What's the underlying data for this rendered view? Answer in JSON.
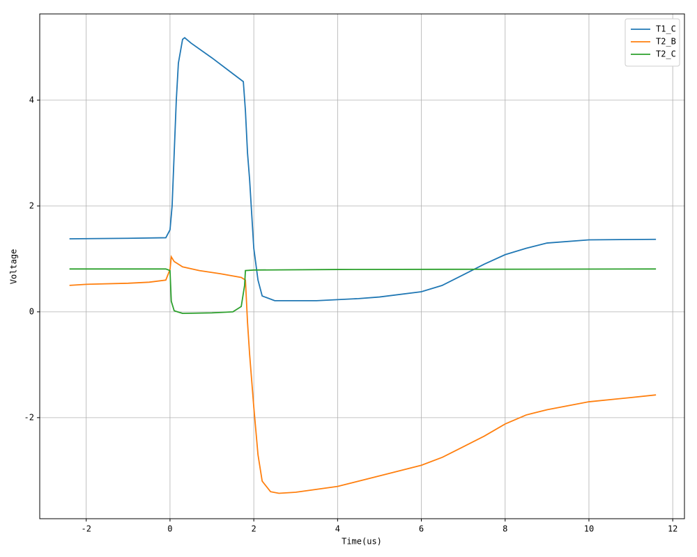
{
  "chart_data": {
    "type": "line",
    "xlabel": "Time(us)",
    "ylabel": "Voltage",
    "xlim": [
      -3.11,
      12.28
    ],
    "ylim": [
      -3.91,
      5.63
    ],
    "xticks": [
      -2,
      0,
      2,
      4,
      6,
      8,
      10,
      12
    ],
    "yticks": [
      -2,
      0,
      2,
      4
    ],
    "grid": true,
    "legend": "upper right",
    "series": [
      {
        "name": "T1_C",
        "color": "#1f77b4",
        "x": [
          -2.4,
          -1,
          -0.1,
          0,
          0.05,
          0.1,
          0.15,
          0.2,
          0.3,
          0.35,
          0.5,
          1.0,
          1.5,
          1.75,
          1.8,
          1.85,
          1.9,
          2.0,
          2.1,
          2.2,
          2.5,
          3.5,
          4.5,
          5,
          6,
          6.5,
          7,
          7.5,
          8,
          8.5,
          9,
          10,
          11.6
        ],
        "values": [
          1.38,
          1.39,
          1.4,
          1.55,
          2.0,
          3.0,
          4.0,
          4.7,
          5.15,
          5.18,
          5.08,
          4.8,
          4.5,
          4.35,
          3.8,
          3.0,
          2.5,
          1.2,
          0.6,
          0.3,
          0.21,
          0.21,
          0.25,
          0.28,
          0.38,
          0.5,
          0.7,
          0.9,
          1.08,
          1.2,
          1.3,
          1.36,
          1.37
        ]
      },
      {
        "name": "T2_B",
        "color": "#ff7f0e",
        "x": [
          -2.4,
          -2,
          -1,
          -0.5,
          -0.1,
          0,
          0.03,
          0.1,
          0.3,
          0.7,
          1.2,
          1.7,
          1.8,
          1.85,
          1.9,
          2.0,
          2.1,
          2.2,
          2.4,
          2.6,
          3,
          4,
          5,
          6,
          6.5,
          7,
          7.5,
          8,
          8.5,
          9,
          10,
          11,
          11.6
        ],
        "values": [
          0.5,
          0.52,
          0.54,
          0.56,
          0.6,
          0.8,
          1.04,
          0.95,
          0.85,
          0.78,
          0.72,
          0.65,
          0.6,
          -0.2,
          -0.8,
          -1.8,
          -2.7,
          -3.2,
          -3.4,
          -3.43,
          -3.41,
          -3.3,
          -3.1,
          -2.9,
          -2.75,
          -2.55,
          -2.35,
          -2.12,
          -1.95,
          -1.85,
          -1.7,
          -1.62,
          -1.57
        ]
      },
      {
        "name": "T2_C",
        "color": "#2ca02c",
        "x": [
          -2.4,
          -0.1,
          0,
          0.03,
          0.1,
          0.3,
          1,
          1.5,
          1.7,
          1.78,
          1.8,
          2,
          4,
          11.6
        ],
        "values": [
          0.81,
          0.81,
          0.78,
          0.2,
          0.02,
          -0.03,
          -0.02,
          0.0,
          0.1,
          0.5,
          0.78,
          0.79,
          0.8,
          0.81
        ]
      }
    ]
  }
}
